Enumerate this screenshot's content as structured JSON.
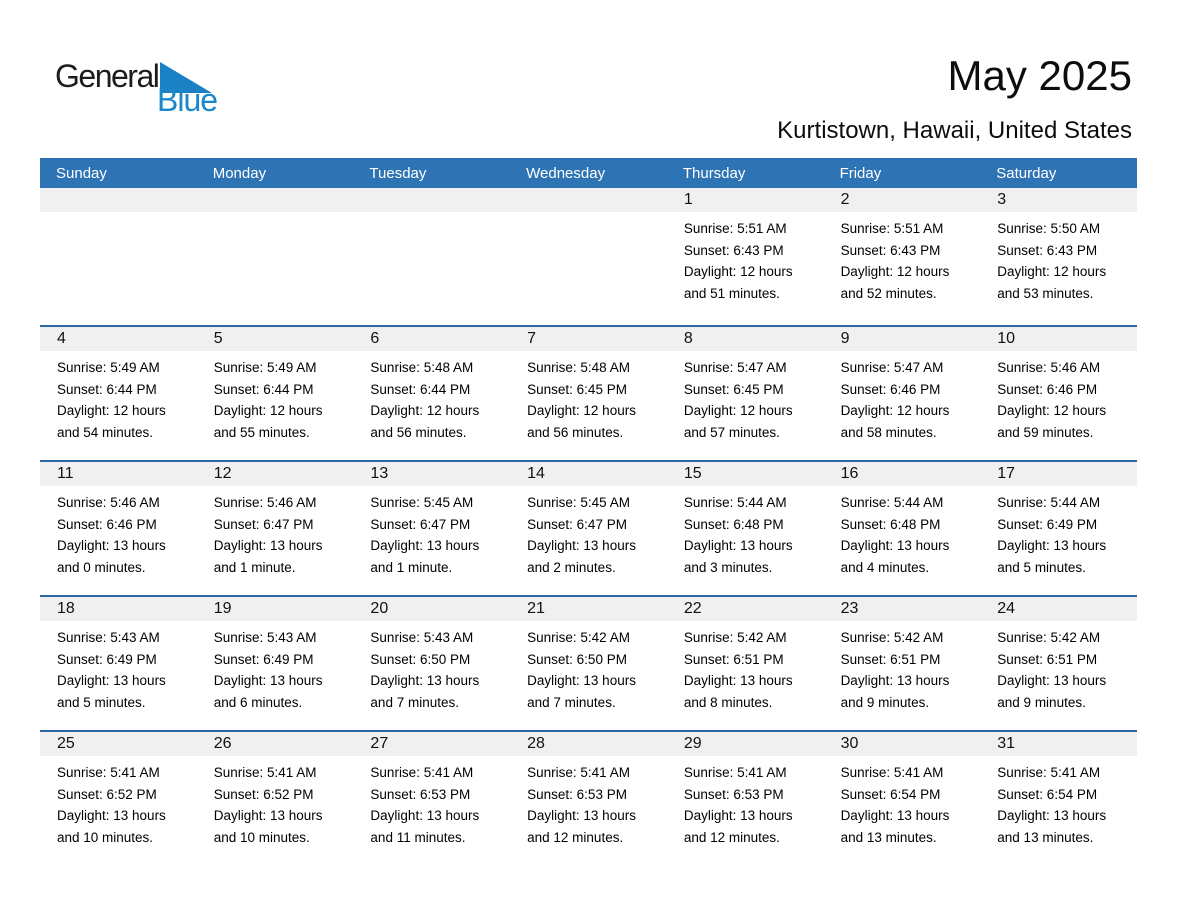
{
  "logo": {
    "part1": "General",
    "part2": "Blue"
  },
  "header": {
    "title": "May 2025",
    "subtitle": "Kurtistown, Hawaii, United States"
  },
  "colors": {
    "header_blue": "#2e74b5",
    "row_line_blue": "#2d66a5",
    "band_gray": "#f0f0f0",
    "logo_blue": "#1b87c9",
    "logo_triangle_blue": "#1a82c4"
  },
  "calendar": {
    "day_headers": [
      "Sunday",
      "Monday",
      "Tuesday",
      "Wednesday",
      "Thursday",
      "Friday",
      "Saturday"
    ],
    "weeks": [
      {
        "days": [
          null,
          null,
          null,
          null,
          {
            "date": "1",
            "lines": [
              "Sunrise: 5:51 AM",
              "Sunset: 6:43 PM",
              "Daylight: 12 hours",
              "and 51 minutes."
            ]
          },
          {
            "date": "2",
            "lines": [
              "Sunrise: 5:51 AM",
              "Sunset: 6:43 PM",
              "Daylight: 12 hours",
              "and 52 minutes."
            ]
          },
          {
            "date": "3",
            "lines": [
              "Sunrise: 5:50 AM",
              "Sunset: 6:43 PM",
              "Daylight: 12 hours",
              "and 53 minutes."
            ]
          }
        ]
      },
      {
        "days": [
          {
            "date": "4",
            "lines": [
              "Sunrise: 5:49 AM",
              "Sunset: 6:44 PM",
              "Daylight: 12 hours",
              "and 54 minutes."
            ]
          },
          {
            "date": "5",
            "lines": [
              "Sunrise: 5:49 AM",
              "Sunset: 6:44 PM",
              "Daylight: 12 hours",
              "and 55 minutes."
            ]
          },
          {
            "date": "6",
            "lines": [
              "Sunrise: 5:48 AM",
              "Sunset: 6:44 PM",
              "Daylight: 12 hours",
              "and 56 minutes."
            ]
          },
          {
            "date": "7",
            "lines": [
              "Sunrise: 5:48 AM",
              "Sunset: 6:45 PM",
              "Daylight: 12 hours",
              "and 56 minutes."
            ]
          },
          {
            "date": "8",
            "lines": [
              "Sunrise: 5:47 AM",
              "Sunset: 6:45 PM",
              "Daylight: 12 hours",
              "and 57 minutes."
            ]
          },
          {
            "date": "9",
            "lines": [
              "Sunrise: 5:47 AM",
              "Sunset: 6:46 PM",
              "Daylight: 12 hours",
              "and 58 minutes."
            ]
          },
          {
            "date": "10",
            "lines": [
              "Sunrise: 5:46 AM",
              "Sunset: 6:46 PM",
              "Daylight: 12 hours",
              "and 59 minutes."
            ]
          }
        ]
      },
      {
        "days": [
          {
            "date": "11",
            "lines": [
              "Sunrise: 5:46 AM",
              "Sunset: 6:46 PM",
              "Daylight: 13 hours",
              "and 0 minutes."
            ]
          },
          {
            "date": "12",
            "lines": [
              "Sunrise: 5:46 AM",
              "Sunset: 6:47 PM",
              "Daylight: 13 hours",
              "and 1 minute."
            ]
          },
          {
            "date": "13",
            "lines": [
              "Sunrise: 5:45 AM",
              "Sunset: 6:47 PM",
              "Daylight: 13 hours",
              "and 1 minute."
            ]
          },
          {
            "date": "14",
            "lines": [
              "Sunrise: 5:45 AM",
              "Sunset: 6:47 PM",
              "Daylight: 13 hours",
              "and 2 minutes."
            ]
          },
          {
            "date": "15",
            "lines": [
              "Sunrise: 5:44 AM",
              "Sunset: 6:48 PM",
              "Daylight: 13 hours",
              "and 3 minutes."
            ]
          },
          {
            "date": "16",
            "lines": [
              "Sunrise: 5:44 AM",
              "Sunset: 6:48 PM",
              "Daylight: 13 hours",
              "and 4 minutes."
            ]
          },
          {
            "date": "17",
            "lines": [
              "Sunrise: 5:44 AM",
              "Sunset: 6:49 PM",
              "Daylight: 13 hours",
              "and 5 minutes."
            ]
          }
        ]
      },
      {
        "days": [
          {
            "date": "18",
            "lines": [
              "Sunrise: 5:43 AM",
              "Sunset: 6:49 PM",
              "Daylight: 13 hours",
              "and 5 minutes."
            ]
          },
          {
            "date": "19",
            "lines": [
              "Sunrise: 5:43 AM",
              "Sunset: 6:49 PM",
              "Daylight: 13 hours",
              "and 6 minutes."
            ]
          },
          {
            "date": "20",
            "lines": [
              "Sunrise: 5:43 AM",
              "Sunset: 6:50 PM",
              "Daylight: 13 hours",
              "and 7 minutes."
            ]
          },
          {
            "date": "21",
            "lines": [
              "Sunrise: 5:42 AM",
              "Sunset: 6:50 PM",
              "Daylight: 13 hours",
              "and 7 minutes."
            ]
          },
          {
            "date": "22",
            "lines": [
              "Sunrise: 5:42 AM",
              "Sunset: 6:51 PM",
              "Daylight: 13 hours",
              "and 8 minutes."
            ]
          },
          {
            "date": "23",
            "lines": [
              "Sunrise: 5:42 AM",
              "Sunset: 6:51 PM",
              "Daylight: 13 hours",
              "and 9 minutes."
            ]
          },
          {
            "date": "24",
            "lines": [
              "Sunrise: 5:42 AM",
              "Sunset: 6:51 PM",
              "Daylight: 13 hours",
              "and 9 minutes."
            ]
          }
        ]
      },
      {
        "days": [
          {
            "date": "25",
            "lines": [
              "Sunrise: 5:41 AM",
              "Sunset: 6:52 PM",
              "Daylight: 13 hours",
              "and 10 minutes."
            ]
          },
          {
            "date": "26",
            "lines": [
              "Sunrise: 5:41 AM",
              "Sunset: 6:52 PM",
              "Daylight: 13 hours",
              "and 10 minutes."
            ]
          },
          {
            "date": "27",
            "lines": [
              "Sunrise: 5:41 AM",
              "Sunset: 6:53 PM",
              "Daylight: 13 hours",
              "and 11 minutes."
            ]
          },
          {
            "date": "28",
            "lines": [
              "Sunrise: 5:41 AM",
              "Sunset: 6:53 PM",
              "Daylight: 13 hours",
              "and 12 minutes."
            ]
          },
          {
            "date": "29",
            "lines": [
              "Sunrise: 5:41 AM",
              "Sunset: 6:53 PM",
              "Daylight: 13 hours",
              "and 12 minutes."
            ]
          },
          {
            "date": "30",
            "lines": [
              "Sunrise: 5:41 AM",
              "Sunset: 6:54 PM",
              "Daylight: 13 hours",
              "and 13 minutes."
            ]
          },
          {
            "date": "31",
            "lines": [
              "Sunrise: 5:41 AM",
              "Sunset: 6:54 PM",
              "Daylight: 13 hours",
              "and 13 minutes."
            ]
          }
        ]
      }
    ]
  }
}
